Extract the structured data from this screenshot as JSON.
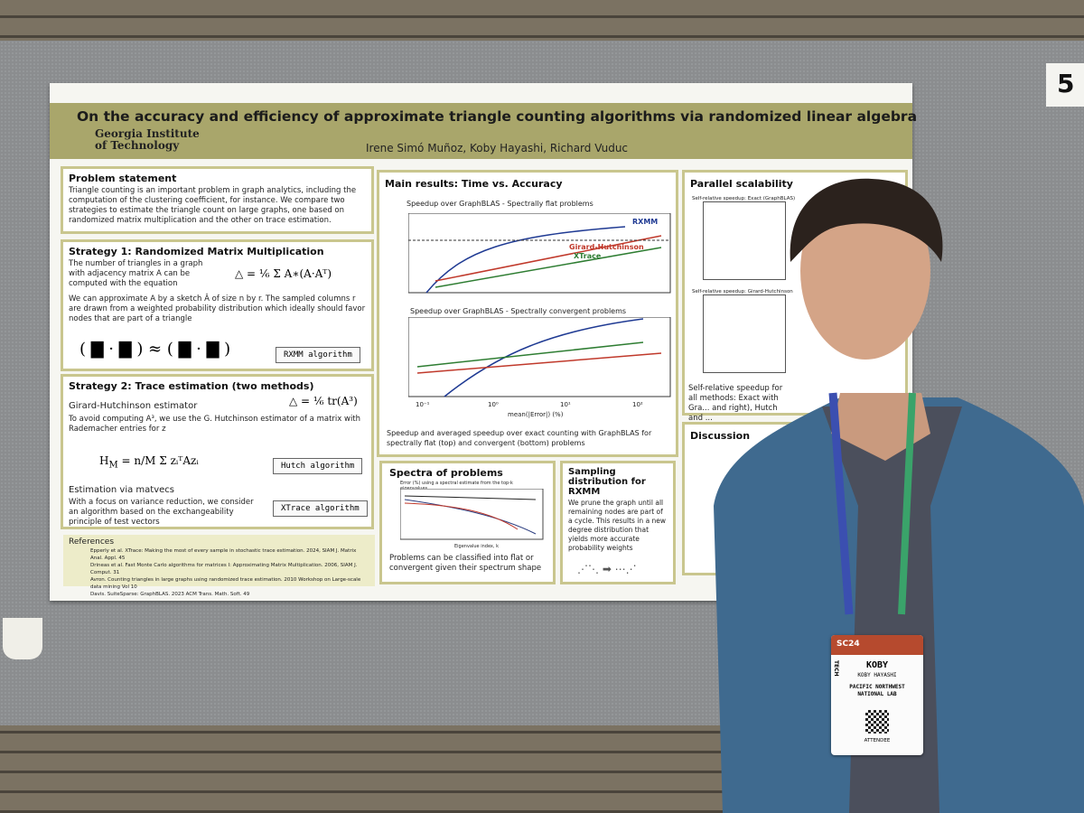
{
  "board_number": "5",
  "poster": {
    "title": "On the accuracy and efficiency of approximate triangle counting algorithms via randomized linear algebra",
    "institution": [
      "Georgia Institute",
      "of Technology"
    ],
    "authors": "Irene Simó Muñoz, Koby Hayashi, Richard Vuduc",
    "problem": {
      "heading": "Problem statement",
      "body": "Triangle counting is an important problem in graph analytics, including the computation of the clustering coefficient, for instance. We compare two strategies to estimate the triangle count on large graphs, one based on randomized matrix multiplication and the other on trace estimation."
    },
    "strategy1": {
      "heading": "Strategy 1: Randomized Matrix Multiplication",
      "intro": "The number of triangles in a graph with adjacency matrix A can be computed with the equation",
      "sketch": "We can approximate A by a sketch Â of size n by r. The sampled columns r are drawn from a weighted probability distribution which ideally should favor nodes that are part of a triangle",
      "algorithm": "RXMM algorithm"
    },
    "strategy2": {
      "heading": "Strategy 2: Trace estimation (two methods)",
      "estimator": "Girard-Hutchinson estimator",
      "avoid": "To avoid computing A³, we use the G. Hutchinson estimator of a matrix with Rademacher entries for z",
      "hutch": "Hutch algorithm",
      "matvecs": "Estimation via matvecs",
      "variance": "With a focus on variance reduction, we consider an algorithm based on the exchangeability principle of test vectors",
      "xtrace": "XTrace algorithm"
    },
    "references": {
      "heading": "References",
      "items": [
        "Epperly et al. XTrace: Making the most of every sample in stochastic trace estimation. 2024, SIAM J. Matrix Anal. Appl. 45",
        "Drineas et al. Fast Monte Carlo algorithms for matrices I: Approximating Matrix Multiplication. 2006, SIAM J. Comput. 31",
        "Avron. Counting triangles in large graphs using randomized trace estimation. 2010 Workshop on Large-scale data mining Vol 10",
        "Davis. SuiteSparse: GraphBLAS. 2023 ACM Trans. Math. Soft. 49"
      ]
    },
    "main_results": {
      "heading": "Main results: Time vs. Accuracy",
      "plot1_title": "Speedup over GraphBLAS - Spectrally flat problems",
      "plot2_title": "Speedup over GraphBLAS - Spectrally convergent problems",
      "legend": [
        "RXMM",
        "Girard-Hutchinson",
        "XTrace"
      ],
      "xticks": [
        "10⁻¹",
        "10⁰",
        "10¹",
        "10²"
      ],
      "xlabel": "mean(|Error|) (%)",
      "caption": "Speedup and averaged speedup over exact counting with GraphBLAS for spectrally flat (top) and convergent (bottom) problems"
    },
    "parallel": {
      "heading": "Parallel scalability",
      "plot1_title": "Self-relative speedup: Exact (GraphBLAS)",
      "plot2_title": "Self-relative speedup: Girard-Hutchinson",
      "caption": "Self-relative speedup for all methods: Exact with Gra... and right), Hutch and ..."
    },
    "discussion": {
      "heading": "Discussion"
    },
    "spectra": {
      "heading": "Spectra of problems",
      "plot_title": "Error (%) using a spectral estimate from the top-k eigenvalues",
      "xlabel": "Eigenvalue index, k",
      "caption": "Problems can be classified into flat or convergent given their spectrum shape"
    },
    "sampling": {
      "heading": "Sampling distribution for RXMM",
      "body": "We prune the graph until all remaining nodes are part of a cycle. This results in a new degree distribution that yields more accurate probability weights"
    }
  },
  "badge": {
    "event": "SC24",
    "side_label": "TECH",
    "first_name": "KOBY",
    "full_name": "KOBY HAYASHI",
    "organization": "PACIFIC NORTHWEST NATIONAL LAB",
    "role": "ATTENDEE"
  }
}
